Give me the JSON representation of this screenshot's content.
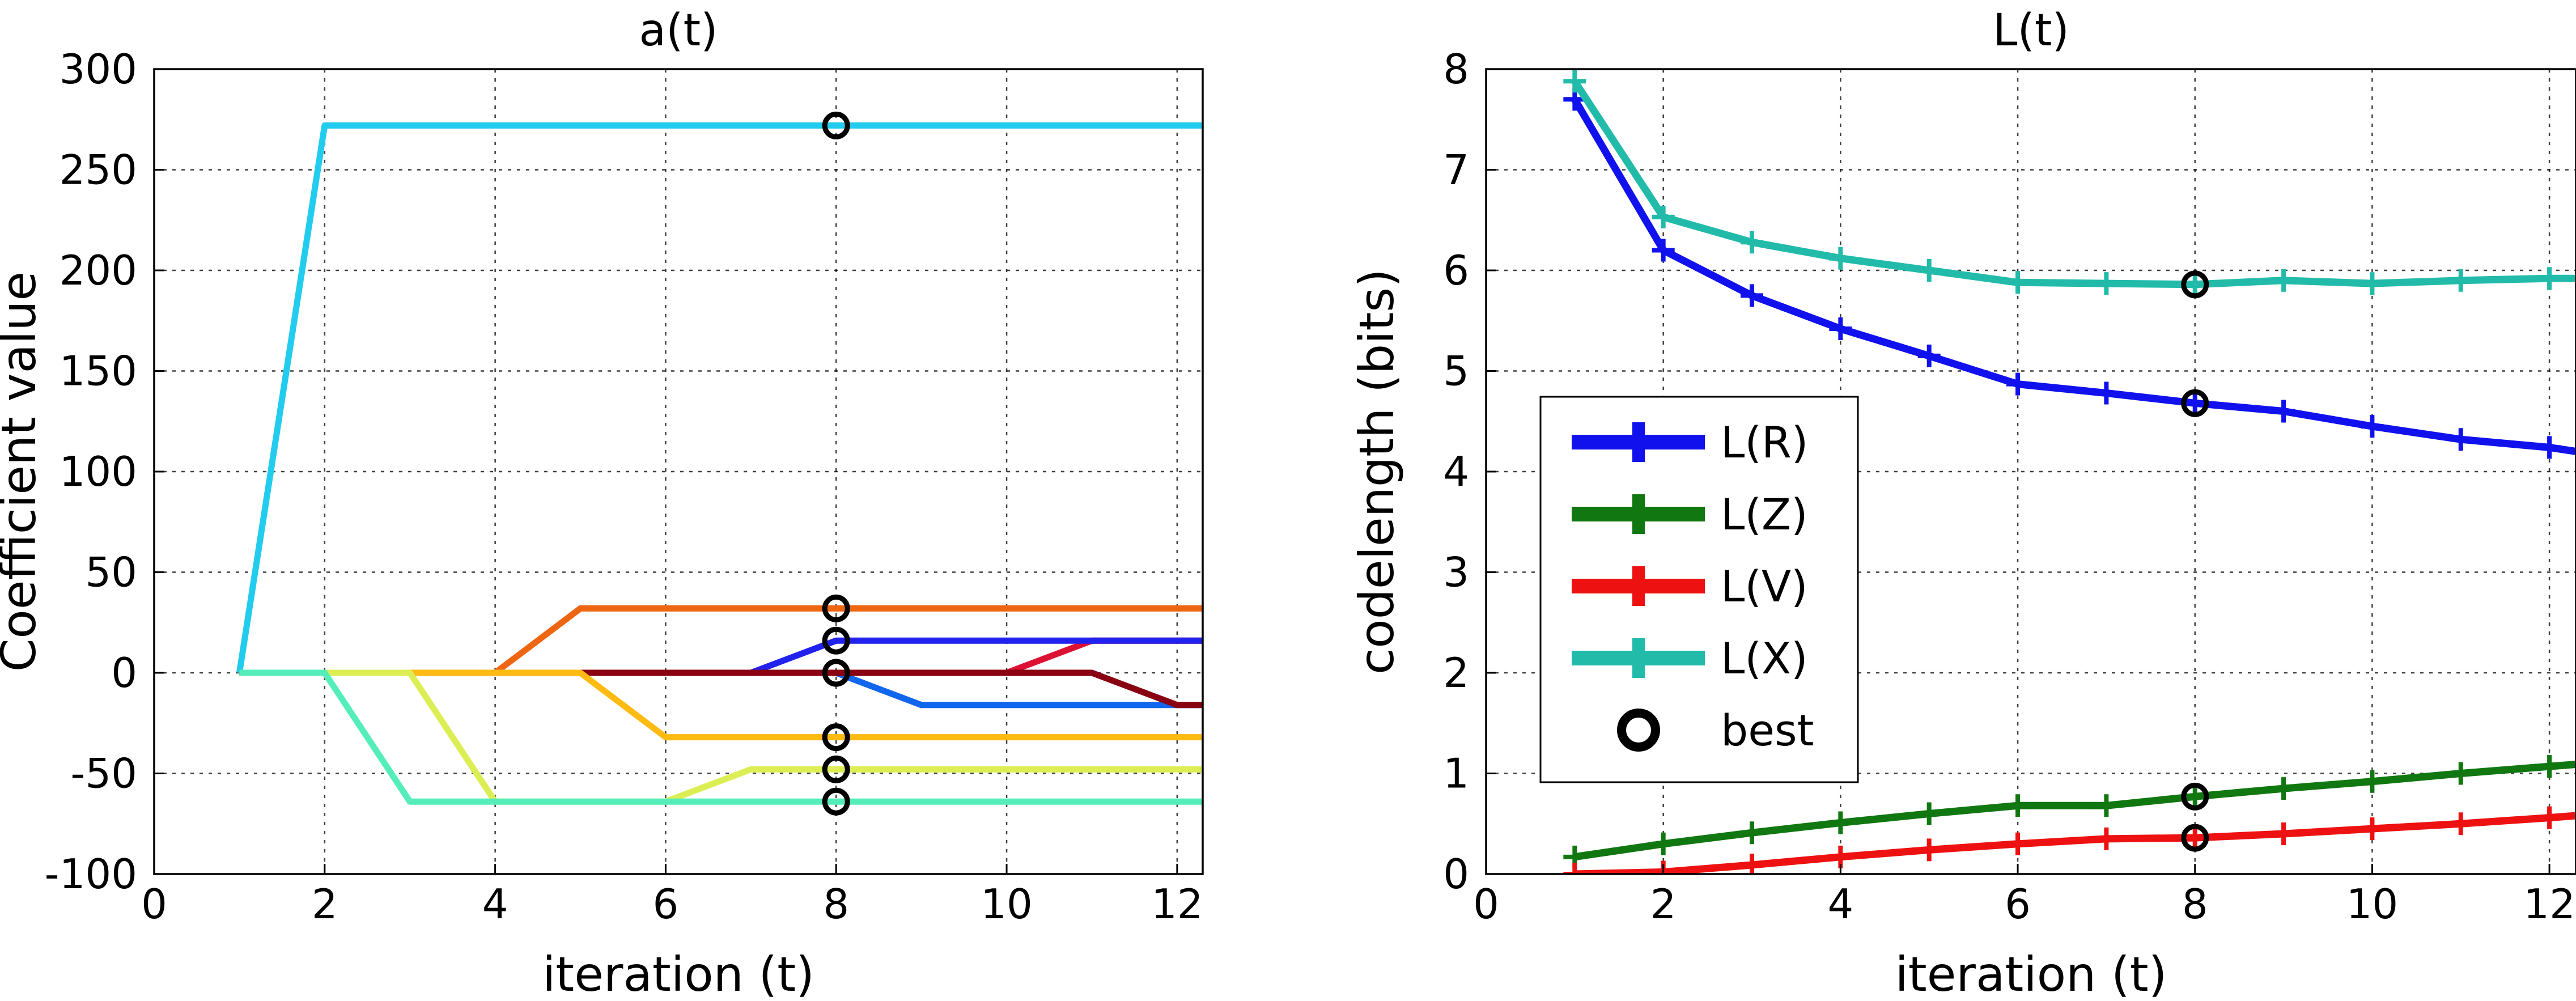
{
  "chart_data": [
    {
      "type": "line",
      "title": "a(t)",
      "xlabel": "iteration (t)",
      "ylabel": "Coefficient value",
      "xlim": [
        0,
        12.3
      ],
      "ylim": [
        -100,
        300
      ],
      "xticks": [
        0,
        2,
        4,
        6,
        8,
        10,
        12
      ],
      "yticks": [
        -100,
        -50,
        0,
        50,
        100,
        150,
        200,
        250,
        300
      ],
      "grid": true,
      "x": [
        1,
        2,
        3,
        4,
        5,
        6,
        7,
        8,
        9,
        10,
        11,
        12,
        12.3
      ],
      "series": [
        {
          "color": "#22ccee",
          "values": [
            0,
            272,
            272,
            272,
            272,
            272,
            272,
            272,
            272,
            272,
            272,
            272,
            272
          ]
        },
        {
          "color": "#ee6611",
          "values": [
            0,
            0,
            0,
            0,
            32,
            32,
            32,
            32,
            32,
            32,
            32,
            32,
            32
          ]
        },
        {
          "color": "#dd1133",
          "values": [
            0,
            0,
            0,
            0,
            0,
            0,
            0,
            0,
            0,
            0,
            16,
            16,
            16
          ]
        },
        {
          "color": "#2222ee",
          "values": [
            0,
            0,
            0,
            0,
            0,
            0,
            0,
            16,
            16,
            16,
            16,
            16,
            16
          ]
        },
        {
          "color": "#1166ee",
          "values": [
            0,
            0,
            0,
            0,
            0,
            0,
            0,
            0,
            -16,
            -16,
            -16,
            -16,
            -16
          ]
        },
        {
          "color": "#880011",
          "values": [
            0,
            0,
            0,
            0,
            0,
            0,
            0,
            0,
            0,
            0,
            0,
            -16,
            -16
          ]
        },
        {
          "color": "#ffbb11",
          "values": [
            0,
            0,
            0,
            0,
            0,
            -32,
            -32,
            -32,
            -32,
            -32,
            -32,
            -32,
            -32
          ]
        },
        {
          "color": "#ddee55",
          "values": [
            0,
            0,
            0,
            -64,
            -64,
            -64,
            -48,
            -48,
            -48,
            -48,
            -48,
            -48,
            -48
          ]
        },
        {
          "color": "#55eebb",
          "values": [
            0,
            0,
            -64,
            -64,
            -64,
            -64,
            -64,
            -64,
            -64,
            -64,
            -64,
            -64,
            -64
          ]
        }
      ],
      "best": {
        "x": 8,
        "y": [
          272,
          32,
          16,
          0,
          -32,
          -48,
          -64
        ]
      }
    },
    {
      "type": "line",
      "title": "L(t)",
      "xlabel": "iteration (t)",
      "ylabel": "codelength (bits)",
      "xlim": [
        0,
        12.3
      ],
      "ylim": [
        0,
        8
      ],
      "xticks": [
        0,
        2,
        4,
        6,
        8,
        10,
        12
      ],
      "yticks": [
        0,
        1,
        2,
        3,
        4,
        5,
        6,
        7,
        8
      ],
      "grid": true,
      "legend": "center-left",
      "x": [
        1,
        2,
        3,
        4,
        5,
        6,
        7,
        8,
        9,
        10,
        11,
        12,
        12.3
      ],
      "series": [
        {
          "name": "L(R)",
          "color": "#1111ee",
          "values": [
            7.7,
            6.2,
            5.75,
            5.42,
            5.15,
            4.87,
            4.78,
            4.68,
            4.6,
            4.45,
            4.32,
            4.24,
            4.2
          ]
        },
        {
          "name": "L(Z)",
          "color": "#117711",
          "values": [
            0.17,
            0.3,
            0.41,
            0.51,
            0.6,
            0.68,
            0.68,
            0.77,
            0.85,
            0.92,
            1.0,
            1.07,
            1.09
          ]
        },
        {
          "name": "L(V)",
          "color": "#ee1111",
          "values": [
            0.0,
            0.02,
            0.09,
            0.17,
            0.24,
            0.3,
            0.35,
            0.36,
            0.4,
            0.45,
            0.5,
            0.56,
            0.58
          ]
        },
        {
          "name": "L(X)",
          "color": "#22bbaa",
          "values": [
            7.88,
            6.53,
            6.28,
            6.12,
            6.0,
            5.88,
            5.87,
            5.86,
            5.9,
            5.87,
            5.9,
            5.92,
            5.92
          ]
        }
      ],
      "best": {
        "label": "best",
        "x": 8,
        "y": [
          5.86,
          4.68,
          0.77,
          0.36
        ]
      }
    }
  ]
}
